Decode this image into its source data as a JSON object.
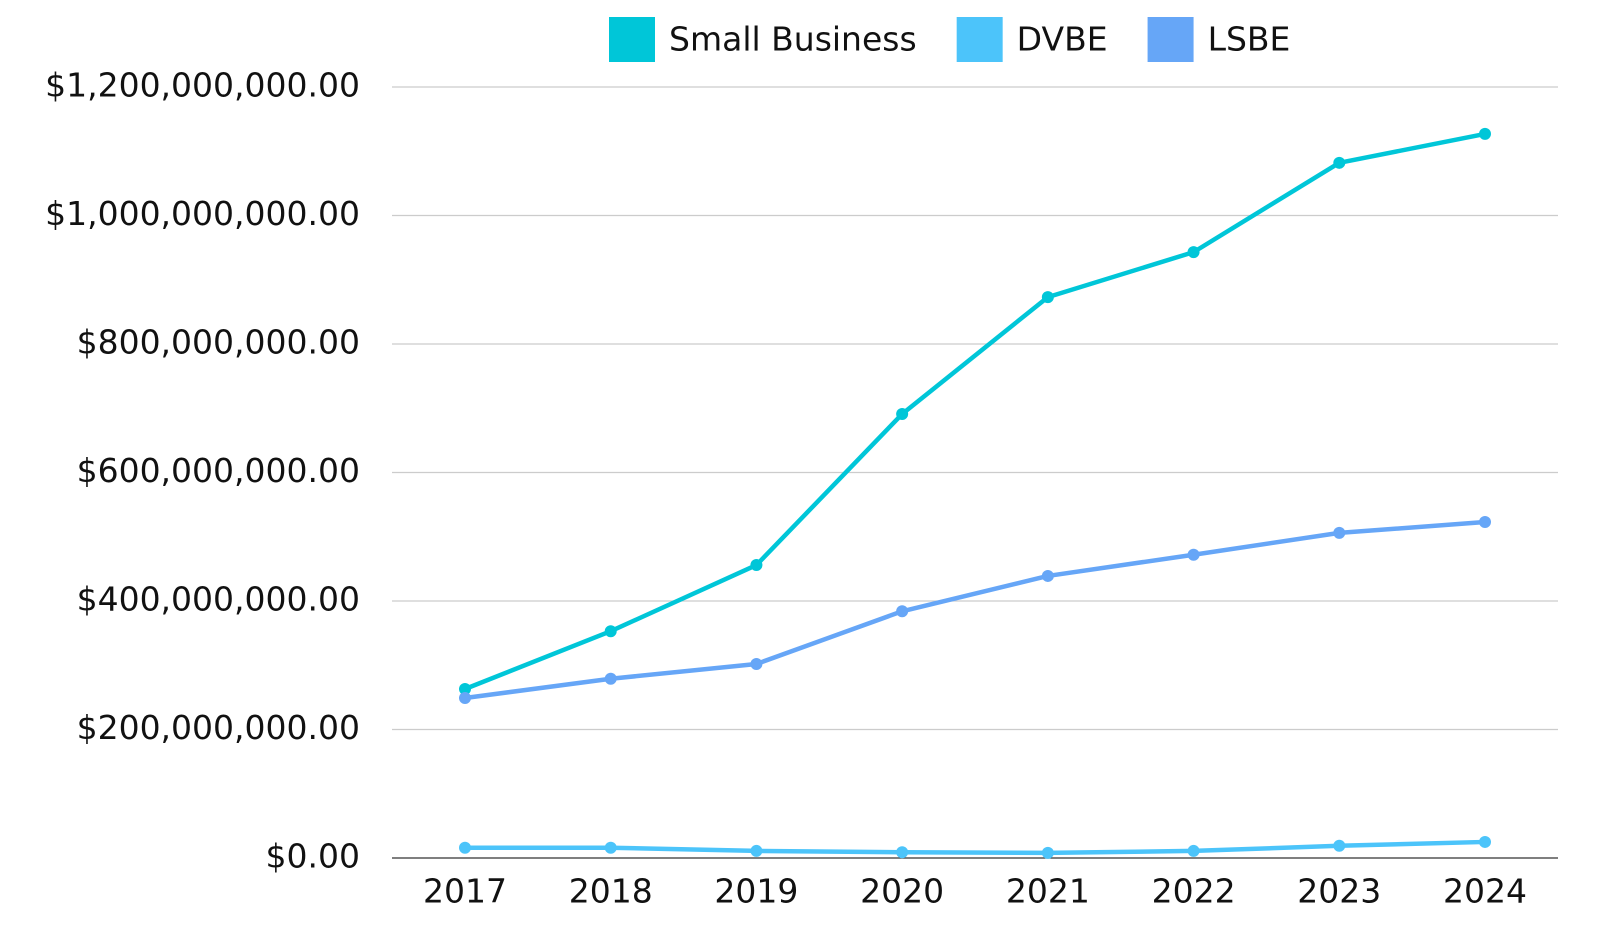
{
  "chart_data": {
    "type": "line",
    "categories": [
      "2017",
      "2018",
      "2019",
      "2020",
      "2021",
      "2022",
      "2023",
      "2024"
    ],
    "series": [
      {
        "name": "Small Business",
        "color": "#00c6d8",
        "values": [
          263000000,
          353000000,
          456000000,
          691000000,
          873000000,
          943000000,
          1082000000,
          1127000000
        ]
      },
      {
        "name": "DVBE",
        "color": "#4cc4fa",
        "values": [
          16000000,
          16000000,
          11000000,
          9000000,
          8000000,
          11000000,
          19000000,
          25000000
        ]
      },
      {
        "name": "LSBE",
        "color": "#66a6f7",
        "values": [
          249000000,
          279000000,
          302000000,
          384000000,
          439000000,
          472000000,
          506000000,
          523000000
        ]
      }
    ],
    "ylim": [
      0,
      1200000000
    ],
    "yticks": [
      {
        "value": 0,
        "label": "$0.00"
      },
      {
        "value": 200000000,
        "label": "$200,000,000.00"
      },
      {
        "value": 400000000,
        "label": "$400,000,000.00"
      },
      {
        "value": 600000000,
        "label": "$600,000,000.00"
      },
      {
        "value": 800000000,
        "label": "$800,000,000.00"
      },
      {
        "value": 1000000000,
        "label": "$1,000,000,000.00"
      },
      {
        "value": 1200000000,
        "label": "$1,200,000,000.00"
      }
    ],
    "grid": true,
    "legend": "top"
  }
}
